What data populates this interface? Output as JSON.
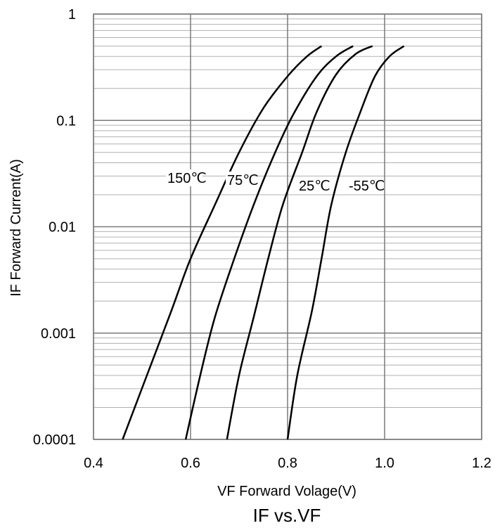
{
  "chart_data": {
    "type": "line",
    "title": "IF vs.VF",
    "xlabel": "VF Forward Volage(V)",
    "ylabel": "IF Forward Current(A)",
    "xlim": [
      0.4,
      1.2
    ],
    "ylim": [
      0.0001,
      1
    ],
    "yscale": "log",
    "grid": true,
    "x_ticks": [
      "0.4",
      "0.6",
      "0.8",
      "1.0",
      "1.2"
    ],
    "y_ticks": [
      "0.0001",
      "0.001",
      "0.01",
      "0.1",
      "1"
    ],
    "series": [
      {
        "name": "150℃",
        "points": [
          [
            0.46,
            0.0001
          ],
          [
            0.51,
            0.0004
          ],
          [
            0.56,
            0.0016
          ],
          [
            0.6,
            0.005
          ],
          [
            0.65,
            0.016
          ],
          [
            0.7,
            0.05
          ],
          [
            0.75,
            0.13
          ],
          [
            0.8,
            0.26
          ],
          [
            0.84,
            0.4
          ],
          [
            0.87,
            0.5
          ]
        ]
      },
      {
        "name": "75℃",
        "points": [
          [
            0.59,
            0.0001
          ],
          [
            0.62,
            0.0004
          ],
          [
            0.65,
            0.0014
          ],
          [
            0.69,
            0.005
          ],
          [
            0.73,
            0.016
          ],
          [
            0.77,
            0.045
          ],
          [
            0.81,
            0.11
          ],
          [
            0.86,
            0.26
          ],
          [
            0.9,
            0.4
          ],
          [
            0.935,
            0.5
          ]
        ]
      },
      {
        "name": "25℃",
        "points": [
          [
            0.675,
            0.0001
          ],
          [
            0.7,
            0.0004
          ],
          [
            0.73,
            0.0014
          ],
          [
            0.76,
            0.005
          ],
          [
            0.79,
            0.016
          ],
          [
            0.83,
            0.05
          ],
          [
            0.86,
            0.12
          ],
          [
            0.9,
            0.27
          ],
          [
            0.94,
            0.42
          ],
          [
            0.975,
            0.5
          ]
        ]
      },
      {
        "name": "-55℃",
        "points": [
          [
            0.8,
            0.0001
          ],
          [
            0.82,
            0.0004
          ],
          [
            0.85,
            0.0016
          ],
          [
            0.87,
            0.005
          ],
          [
            0.89,
            0.016
          ],
          [
            0.92,
            0.05
          ],
          [
            0.95,
            0.12
          ],
          [
            0.98,
            0.26
          ],
          [
            1.01,
            0.4
          ],
          [
            1.04,
            0.5
          ]
        ]
      }
    ]
  }
}
